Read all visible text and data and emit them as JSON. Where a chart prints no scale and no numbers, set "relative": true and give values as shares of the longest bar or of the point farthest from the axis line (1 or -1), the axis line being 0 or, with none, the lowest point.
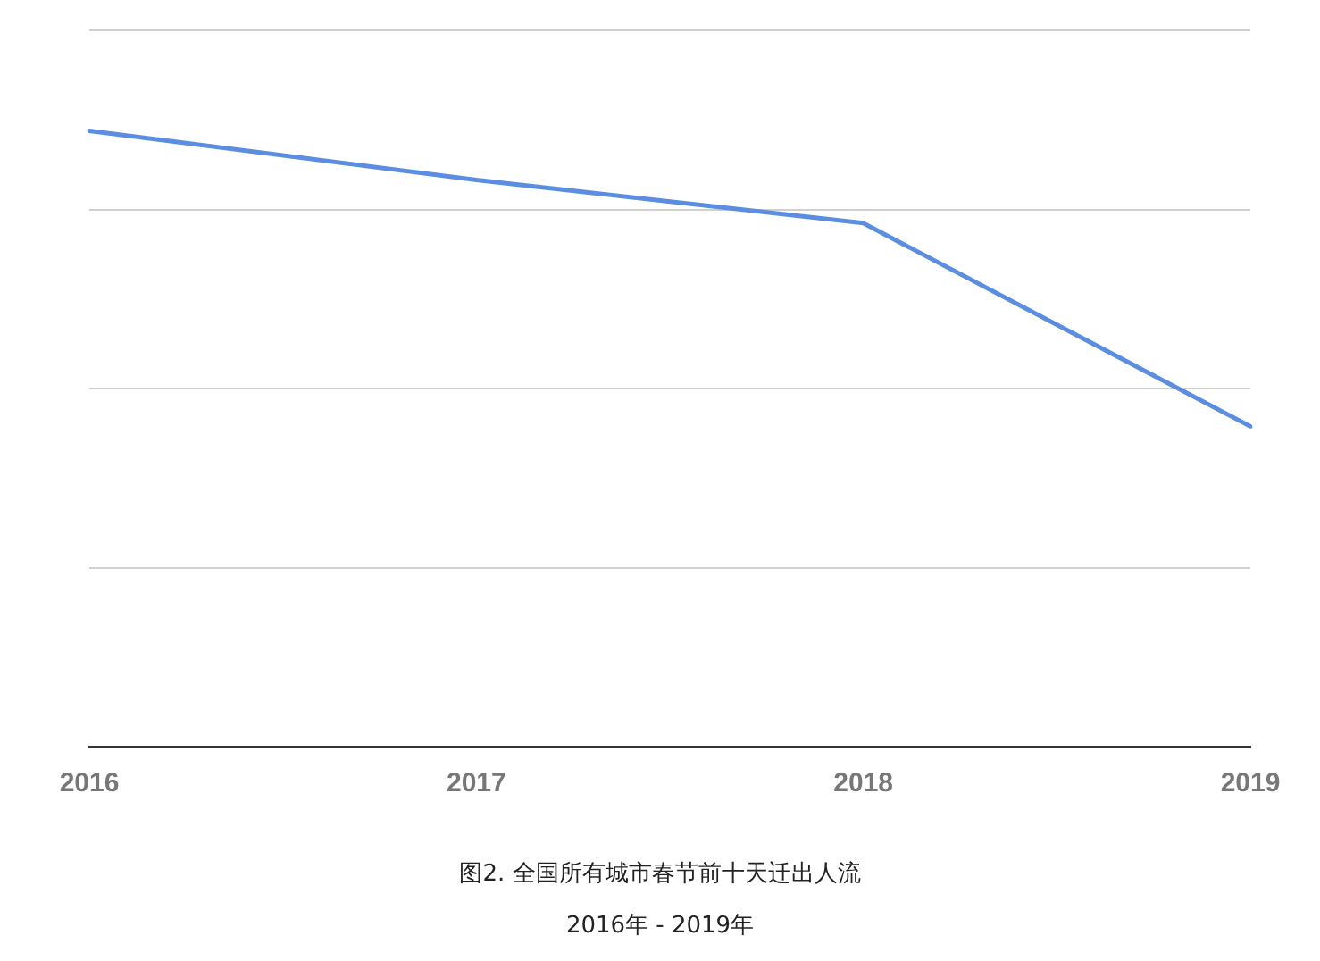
{
  "chart_data": {
    "type": "line",
    "title": "图2. 全国所有城市春节前十天迁出人流",
    "subtitle": "2016年 - 2019年",
    "categories": [
      "2016",
      "2017",
      "2018",
      "2019"
    ],
    "relative": true,
    "series": [
      {
        "color": "#5b8ee0",
        "values": [
          1,
          0.92,
          0.85,
          0.52
        ]
      }
    ],
    "grid": "y",
    "legend": false,
    "marker": "none",
    "line_style": "solid"
  }
}
